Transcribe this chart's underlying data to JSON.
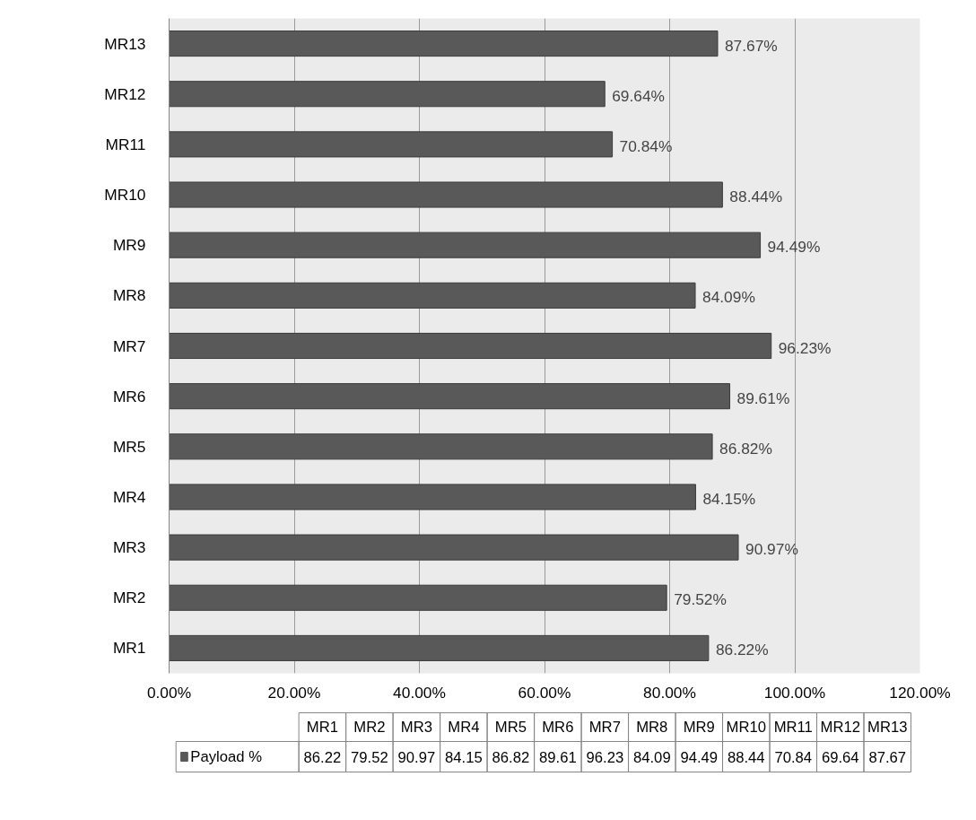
{
  "chart_data": {
    "type": "bar",
    "orientation": "horizontal",
    "categories": [
      "MR13",
      "MR12",
      "MR11",
      "MR10",
      "MR9",
      "MR8",
      "MR7",
      "MR6",
      "MR5",
      "MR4",
      "MR3",
      "MR2",
      "MR1"
    ],
    "series": [
      {
        "name": "Payload %",
        "color": "#595959",
        "values": [
          87.67,
          69.64,
          70.84,
          88.44,
          94.49,
          84.09,
          96.23,
          89.61,
          86.82,
          84.15,
          90.97,
          79.52,
          86.22
        ],
        "value_labels": [
          "87.67%",
          "69.64%",
          "70.84%",
          "88.44%",
          "94.49%",
          "84.09%",
          "96.23%",
          "89.61%",
          "86.82%",
          "84.15%",
          "90.97%",
          "79.52%",
          "86.22%"
        ]
      }
    ],
    "xlim": [
      0,
      120
    ],
    "xticks": [
      {
        "value": 0,
        "label": "0.00%"
      },
      {
        "value": 20,
        "label": "20.00%"
      },
      {
        "value": 40,
        "label": "40.00%"
      },
      {
        "value": 60,
        "label": "60.00%"
      },
      {
        "value": 80,
        "label": "80.00%"
      },
      {
        "value": 100,
        "label": "100.00%"
      },
      {
        "value": 120,
        "label": "120.00%"
      }
    ],
    "annotations": [
      "86.22",
      "79.52",
      "90.97",
      "84.15",
      "86.82",
      "89.61",
      "96.23",
      "84.09",
      "94.49",
      "88.44",
      "70.84",
      "69.64",
      "87.67"
    ],
    "grid": "x",
    "data_labels": true,
    "legend": "bottom"
  }
}
